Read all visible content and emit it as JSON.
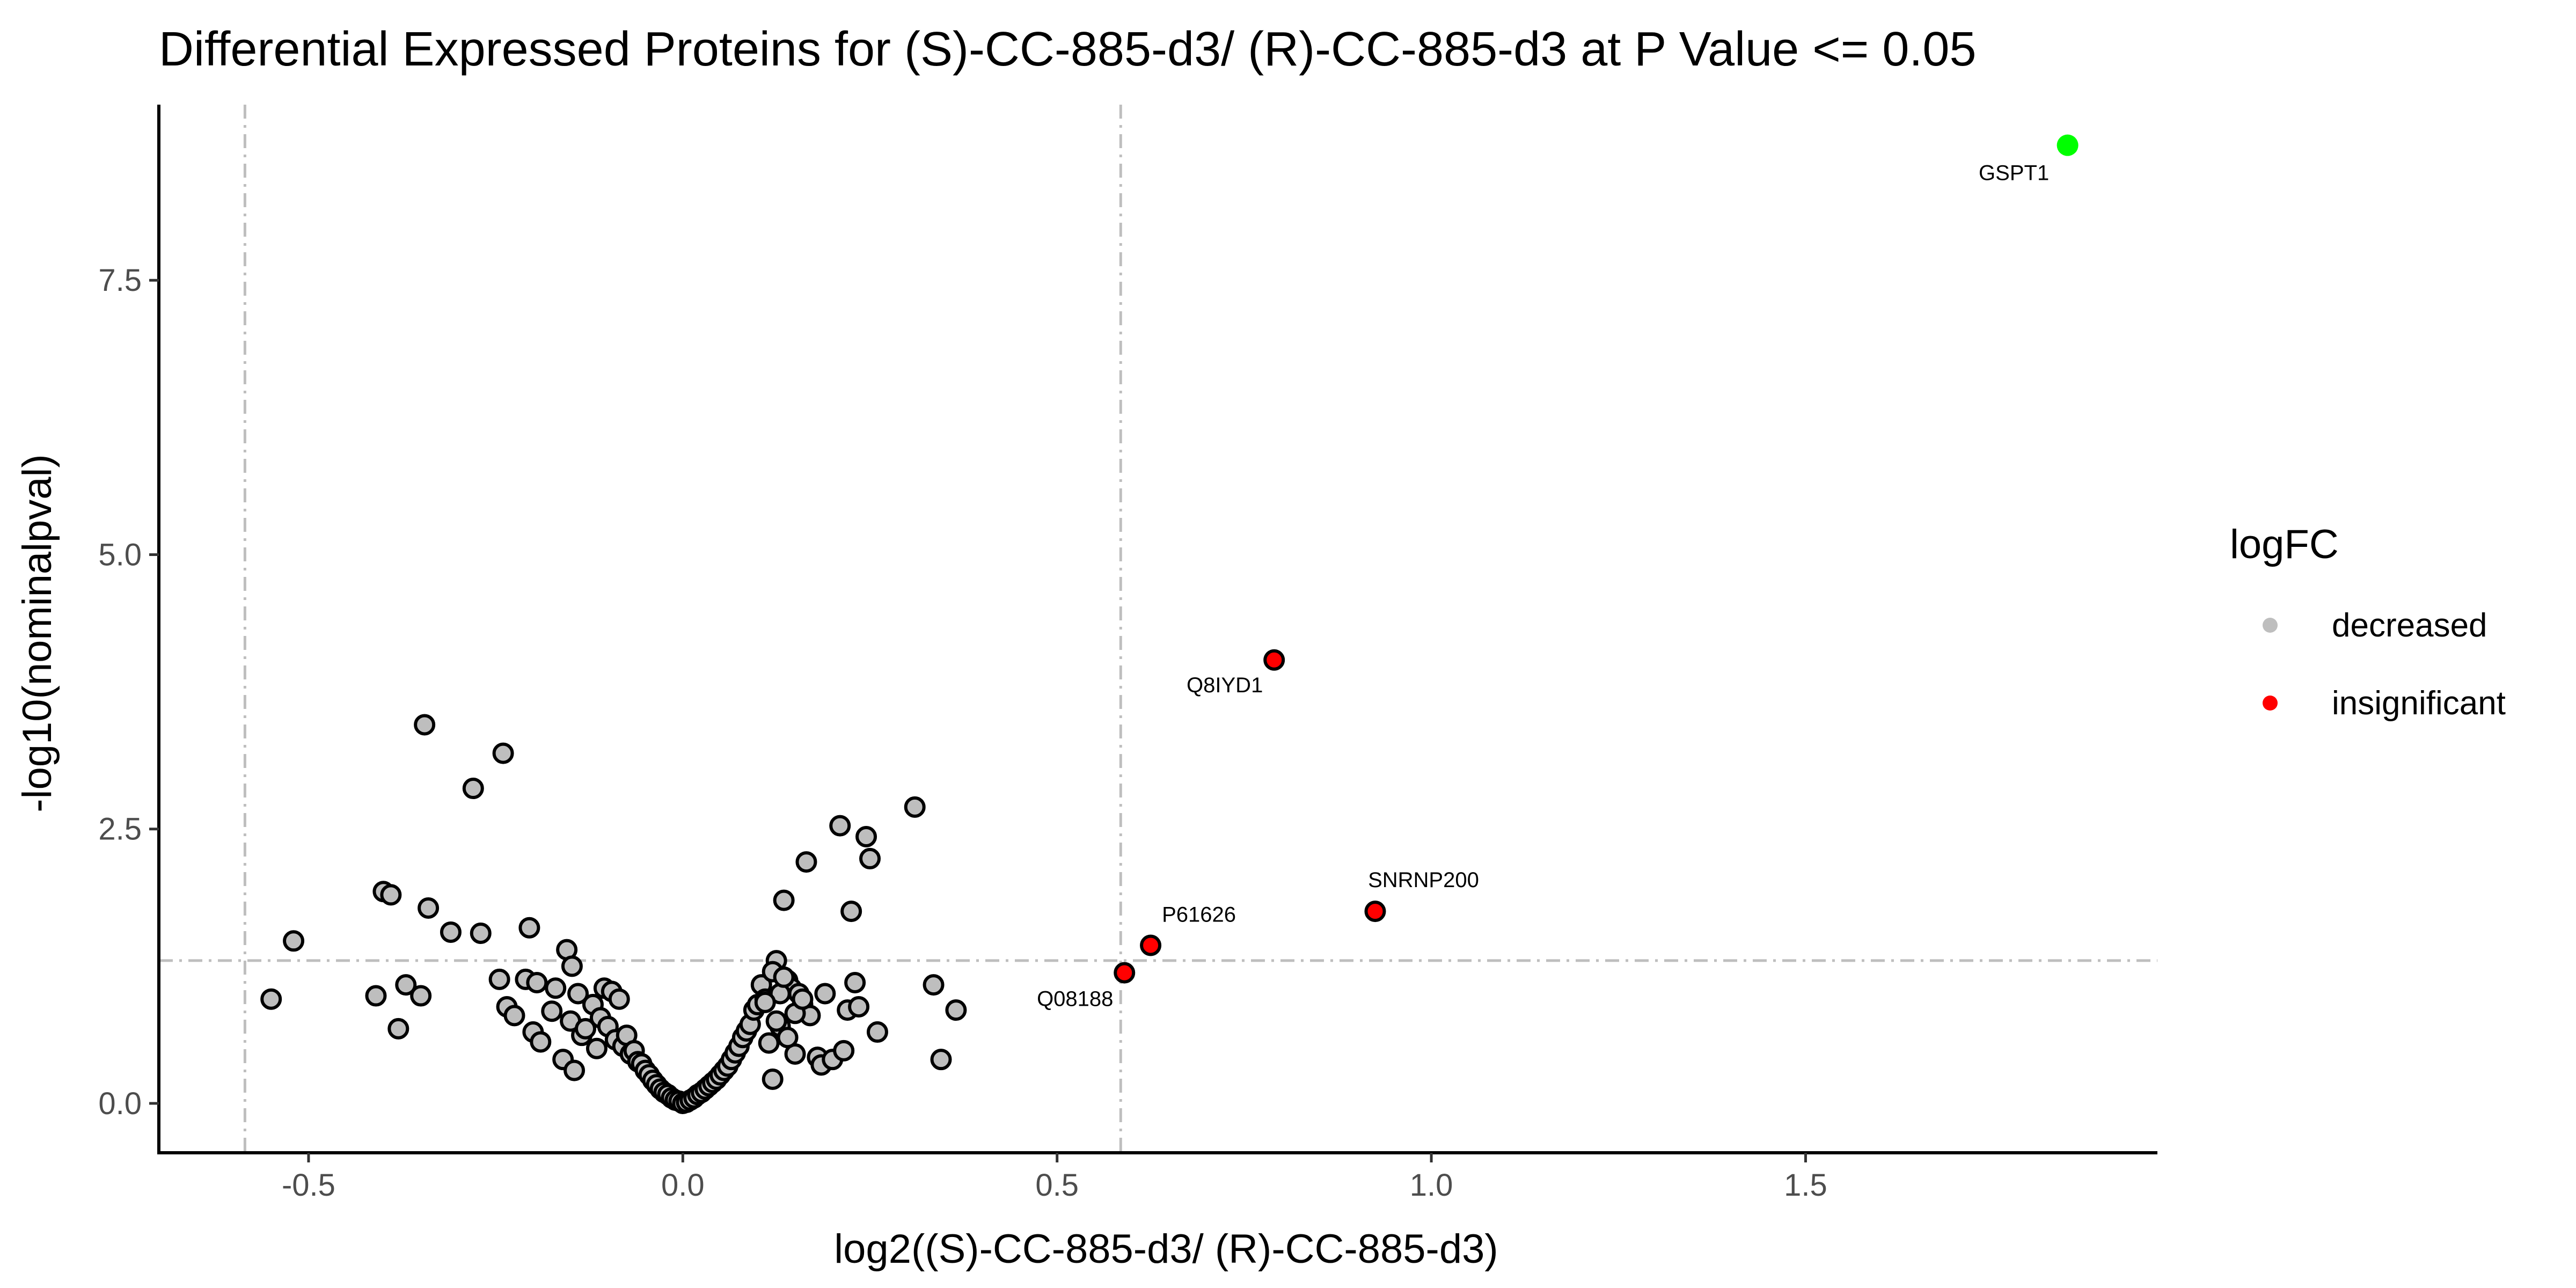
{
  "chart_data": {
    "type": "scatter",
    "title": "Differential Expressed Proteins for (S)-CC-885-d3/ (R)-CC-885-d3 at P Value <= 0.05",
    "xlabel": "log2((S)-CC-885-d3/ (R)-CC-885-d3)",
    "ylabel": "-log10(nominalpval)",
    "xlim": [
      -0.7,
      1.97
    ],
    "ylim": [
      -0.45,
      9.1
    ],
    "xticks": [
      -0.5,
      0.0,
      0.5,
      1.0,
      1.5
    ],
    "xtick_labels": [
      "-0.5",
      "0.0",
      "0.5",
      "1.0",
      "1.5"
    ],
    "yticks": [
      0.0,
      2.5,
      5.0,
      7.5
    ],
    "ytick_labels": [
      "0.0",
      "2.5",
      "5.0",
      "7.5"
    ],
    "grid": false,
    "reference_lines": {
      "vertical": [
        -0.585,
        0.585
      ],
      "horizontal": [
        1.301
      ]
    },
    "legend": {
      "title": "logFC",
      "position": "right",
      "entries": [
        {
          "label": "decreased",
          "color": "#bebebe"
        },
        {
          "label": "insignificant",
          "color": "#ff0000"
        }
      ]
    },
    "colors": {
      "decreased": "#bebebe",
      "insignificant": "#ff0000",
      "highlight": "#00ff00",
      "outline": "#000000",
      "reference_line": "#bebebe"
    },
    "series": [
      {
        "name": "decreased",
        "x": [
          -0.55,
          -0.52,
          -0.41,
          -0.4,
          -0.39,
          -0.38,
          -0.37,
          -0.35,
          -0.345,
          -0.34,
          -0.31,
          -0.28,
          -0.27,
          -0.245,
          -0.24,
          -0.235,
          -0.225,
          -0.21,
          -0.205,
          -0.2,
          -0.195,
          -0.19,
          -0.175,
          -0.17,
          -0.16,
          -0.155,
          -0.15,
          -0.148,
          -0.145,
          -0.14,
          -0.135,
          -0.13,
          -0.12,
          -0.115,
          -0.11,
          -0.105,
          -0.1,
          -0.095,
          -0.09,
          -0.085,
          -0.08,
          -0.075,
          -0.07,
          -0.065,
          -0.06,
          -0.055,
          -0.05,
          -0.045,
          -0.04,
          -0.035,
          -0.03,
          -0.025,
          -0.02,
          -0.015,
          -0.01,
          -0.005,
          0.0,
          0.005,
          0.01,
          0.015,
          0.02,
          0.025,
          0.03,
          0.035,
          0.04,
          0.045,
          0.05,
          0.055,
          0.06,
          0.065,
          0.07,
          0.075,
          0.08,
          0.085,
          0.09,
          0.095,
          0.1,
          0.105,
          0.11,
          0.115,
          0.12,
          0.125,
          0.13,
          0.135,
          0.14,
          0.145,
          0.15,
          0.155,
          0.16,
          0.165,
          0.17,
          0.18,
          0.185,
          0.19,
          0.2,
          0.21,
          0.215,
          0.22,
          0.225,
          0.23,
          0.235,
          0.245,
          0.25,
          0.26,
          0.31,
          0.335,
          0.345,
          0.365,
          0.12,
          0.13,
          0.125,
          0.11,
          0.135,
          0.14,
          0.15,
          0.16
        ],
        "y": [
          0.95,
          1.48,
          0.98,
          1.93,
          1.9,
          0.68,
          1.08,
          0.98,
          3.45,
          1.78,
          1.56,
          2.87,
          1.55,
          1.13,
          3.19,
          0.88,
          0.8,
          1.13,
          1.6,
          0.65,
          1.1,
          0.56,
          0.84,
          1.05,
          0.4,
          1.4,
          0.75,
          1.25,
          0.3,
          1.0,
          0.62,
          0.68,
          0.9,
          0.5,
          0.78,
          1.05,
          0.7,
          1.02,
          0.58,
          0.95,
          0.52,
          0.62,
          0.45,
          0.48,
          0.38,
          0.36,
          0.3,
          0.26,
          0.21,
          0.17,
          0.13,
          0.1,
          0.08,
          0.05,
          0.03,
          0.02,
          0.0,
          0.01,
          0.03,
          0.05,
          0.08,
          0.1,
          0.13,
          0.16,
          0.19,
          0.22,
          0.26,
          0.3,
          0.34,
          0.4,
          0.46,
          0.52,
          0.6,
          0.66,
          0.72,
          0.85,
          0.9,
          1.08,
          0.95,
          0.55,
          0.22,
          1.3,
          0.7,
          1.85,
          1.12,
          1.05,
          0.45,
          1.0,
          0.9,
          2.2,
          0.8,
          0.42,
          0.35,
          1.0,
          0.4,
          2.53,
          0.48,
          0.85,
          1.75,
          1.1,
          0.88,
          2.43,
          2.23,
          0.65,
          2.7,
          1.08,
          0.4,
          0.85,
          1.2,
          1.0,
          0.75,
          0.92,
          1.15,
          0.6,
          0.82,
          0.95
        ]
      },
      {
        "name": "insignificant",
        "x": [
          0.59,
          0.625,
          0.79,
          0.925
        ],
        "y": [
          1.19,
          1.44,
          4.04,
          1.75
        ],
        "labels": [
          "Q08188",
          "P61626",
          "Q8IYD1",
          "SNRNP200"
        ]
      },
      {
        "x": [
          1.85
        ],
        "y": [
          8.73
        ],
        "labels": [
          "GSPT1"
        ]
      }
    ]
  }
}
